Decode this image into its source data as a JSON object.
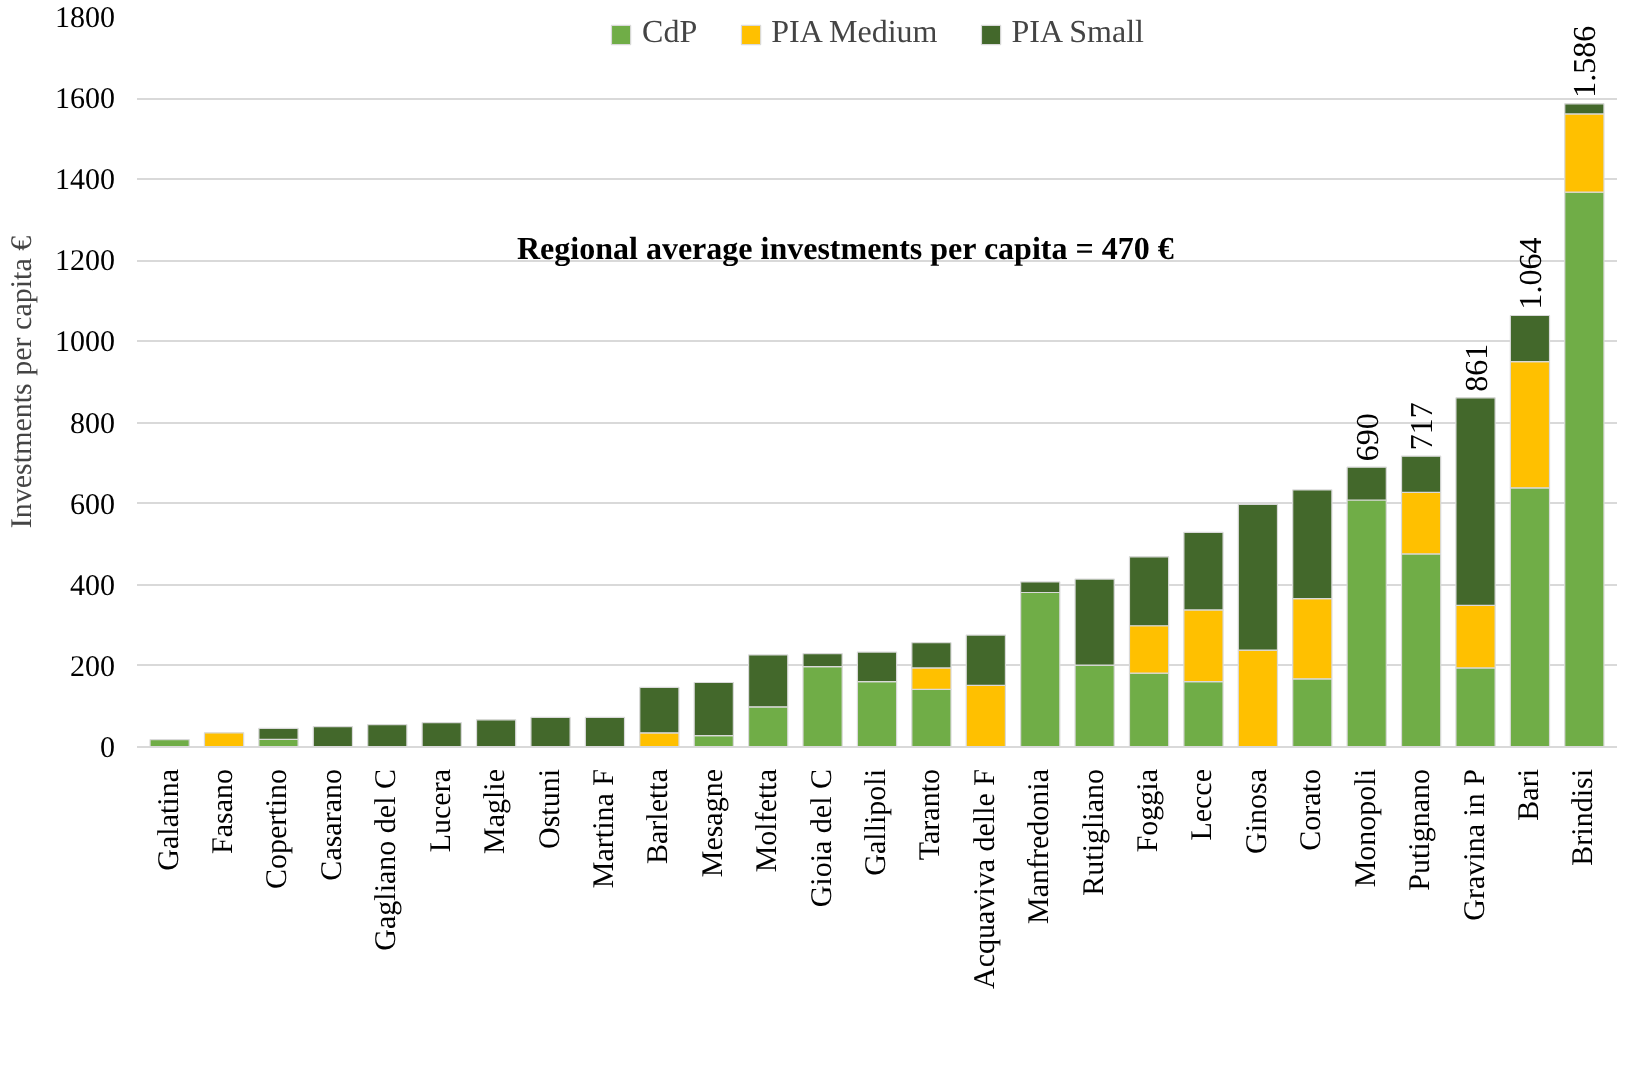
{
  "chart_data": {
    "type": "bar",
    "stacked": true,
    "ylabel": "Investments per capita €",
    "categories": [
      "Galatina",
      "Fasano",
      "Copertino",
      "Casarano",
      "Gagliano del C",
      "Lucera",
      "Maglie",
      "Ostuni",
      "Martina F",
      "Barletta",
      "Mesagne",
      "Molfetta",
      "Gioia del C",
      "Gallipoli",
      "Taranto",
      "Acquaviva delle F",
      "Manfredonia",
      "Rutigliano",
      "Foggia",
      "Lecce",
      "Ginosa",
      "Corato",
      "Monopoli",
      "Putignano",
      "Gravina in P",
      "Bari",
      "Brindisi"
    ],
    "series": [
      {
        "name": "CdP",
        "color": "#70ad47",
        "values": [
          18,
          null,
          19,
          null,
          null,
          null,
          null,
          null,
          null,
          null,
          28,
          99,
          198,
          161,
          142,
          null,
          381,
          202,
          182,
          161,
          null,
          168,
          609,
          476,
          195,
          639,
          1368
        ]
      },
      {
        "name": "PIA Medium",
        "color": "#ffc000",
        "values": [
          null,
          35,
          null,
          null,
          null,
          null,
          null,
          null,
          null,
          35,
          null,
          null,
          null,
          null,
          53,
          152,
          null,
          null,
          117,
          177,
          239,
          198,
          null,
          152,
          154,
          311,
          193
        ]
      },
      {
        "name": "PIA Small",
        "color": "#43682b",
        "values": [
          null,
          null,
          27,
          50,
          55,
          60,
          67,
          73,
          73,
          112,
          131,
          128,
          32,
          73,
          62,
          124,
          26,
          212,
          170,
          191,
          359,
          268,
          81,
          89,
          512,
          114,
          25
        ]
      }
    ],
    "totals": [
      null,
      null,
      null,
      null,
      null,
      null,
      null,
      null,
      null,
      null,
      null,
      null,
      null,
      null,
      null,
      null,
      null,
      null,
      null,
      null,
      null,
      null,
      "690",
      "717",
      "861",
      "1.064",
      "1.586"
    ],
    "annotations": [
      "Regional average investments per capita = 470 €"
    ],
    "ylim": [
      0,
      1800
    ],
    "yticks": [
      0,
      200,
      400,
      600,
      800,
      1000,
      1200,
      1400,
      1600,
      1800
    ],
    "grid": "y",
    "legend": "top"
  }
}
